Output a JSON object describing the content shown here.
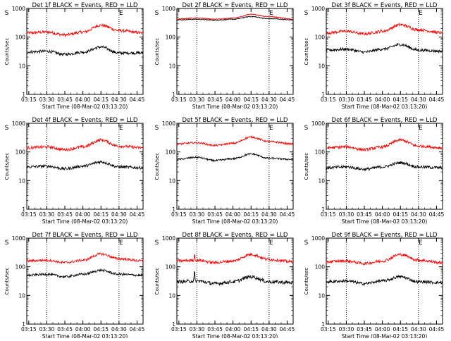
{
  "chart_data": [
    {
      "type": "line",
      "title": "Det 1f BLACK = Events, RED = LLD",
      "ylabel": "Counts/sec",
      "xlabel": "Start Time (08-Mar-02 03:13:20)",
      "yscale": "log",
      "ylim": [
        1,
        1000
      ],
      "x": [
        "03:15",
        "03:30",
        "03:45",
        "04:00",
        "04:15",
        "04:30",
        "04:45"
      ],
      "vlines": [
        "03:30",
        "04:30"
      ],
      "markers": [
        "S",
        "E"
      ],
      "series": [
        {
          "color": "#ff0000",
          "profile": [
            {
              "t": "03:13",
              "v": 140
            },
            {
              "t": "03:30",
              "v": 150
            },
            {
              "t": "03:45",
              "v": 120
            },
            {
              "t": "04:00",
              "v": 150
            },
            {
              "t": "04:15",
              "v": 260
            },
            {
              "t": "04:30",
              "v": 170
            },
            {
              "t": "04:50",
              "v": 140
            }
          ],
          "noise": 0.1,
          "spikes": []
        },
        {
          "color": "#000000",
          "profile": [
            {
              "t": "03:13",
              "v": 30
            },
            {
              "t": "03:30",
              "v": 32
            },
            {
              "t": "03:45",
              "v": 25
            },
            {
              "t": "04:00",
              "v": 30
            },
            {
              "t": "04:15",
              "v": 45
            },
            {
              "t": "04:30",
              "v": 28
            },
            {
              "t": "04:50",
              "v": 28
            }
          ],
          "noise": 0.1,
          "spikes": []
        }
      ]
    },
    {
      "type": "line",
      "title": "Det 2f BLACK = Events, RED = LLD",
      "ylabel": "Counts/sec",
      "xlabel": "Start Time (08-Mar-02 03:13:20)",
      "yscale": "log",
      "ylim": [
        1,
        1000
      ],
      "x": [
        "03:15",
        "03:30",
        "03:45",
        "04:00",
        "04:15",
        "04:30",
        "04:45"
      ],
      "vlines": [
        "03:30",
        "04:30"
      ],
      "markers": [
        "S",
        "E"
      ],
      "series": [
        {
          "color": "#ff0000",
          "profile": [
            {
              "t": "03:13",
              "v": 430
            },
            {
              "t": "03:30",
              "v": 460
            },
            {
              "t": "03:45",
              "v": 420
            },
            {
              "t": "04:00",
              "v": 460
            },
            {
              "t": "04:15",
              "v": 620
            },
            {
              "t": "04:30",
              "v": 520
            },
            {
              "t": "04:50",
              "v": 430
            }
          ],
          "noise": 0.03,
          "spikes": []
        },
        {
          "color": "#000000",
          "profile": [
            {
              "t": "03:13",
              "v": 400
            },
            {
              "t": "03:30",
              "v": 420
            },
            {
              "t": "03:45",
              "v": 390
            },
            {
              "t": "04:00",
              "v": 420
            },
            {
              "t": "04:15",
              "v": 520
            },
            {
              "t": "04:30",
              "v": 440
            },
            {
              "t": "04:50",
              "v": 400
            }
          ],
          "noise": 0.03,
          "spikes": []
        }
      ]
    },
    {
      "type": "line",
      "title": "Det 3f BLACK = Events, RED = LLD",
      "ylabel": "Counts/sec",
      "xlabel": "Start Time (08-Mar-02 03:13:20)",
      "yscale": "log",
      "ylim": [
        1,
        1000
      ],
      "x": [
        "03:15",
        "03:30",
        "03:45",
        "04:00",
        "04:15",
        "04:30",
        "04:45"
      ],
      "vlines": [
        "03:30",
        "04:30"
      ],
      "markers": [
        "S",
        "E"
      ],
      "series": [
        {
          "color": "#ff0000",
          "profile": [
            {
              "t": "03:13",
              "v": 140
            },
            {
              "t": "03:30",
              "v": 160
            },
            {
              "t": "03:45",
              "v": 130
            },
            {
              "t": "04:00",
              "v": 160
            },
            {
              "t": "04:15",
              "v": 270
            },
            {
              "t": "04:30",
              "v": 180
            },
            {
              "t": "04:50",
              "v": 140
            }
          ],
          "noise": 0.1,
          "spikes": []
        },
        {
          "color": "#000000",
          "profile": [
            {
              "t": "03:13",
              "v": 35
            },
            {
              "t": "03:30",
              "v": 38
            },
            {
              "t": "03:45",
              "v": 30
            },
            {
              "t": "04:00",
              "v": 38
            },
            {
              "t": "04:15",
              "v": 55
            },
            {
              "t": "04:30",
              "v": 35
            },
            {
              "t": "04:50",
              "v": 32
            }
          ],
          "noise": 0.1,
          "spikes": []
        }
      ]
    },
    {
      "type": "line",
      "title": "Det 4f BLACK = Events, RED = LLD",
      "ylabel": "Counts/sec",
      "xlabel": "Start Time (08-Mar-02 03:13:20)",
      "yscale": "log",
      "ylim": [
        1,
        1000
      ],
      "x": [
        "03:15",
        "03:30",
        "03:45",
        "04:00",
        "04:15",
        "04:30",
        "04:45"
      ],
      "vlines": [
        "03:30",
        "04:30"
      ],
      "markers": [
        "S",
        "E"
      ],
      "series": [
        {
          "color": "#ff0000",
          "profile": [
            {
              "t": "03:13",
              "v": 140
            },
            {
              "t": "03:30",
              "v": 150
            },
            {
              "t": "03:45",
              "v": 120
            },
            {
              "t": "04:00",
              "v": 150
            },
            {
              "t": "04:15",
              "v": 260
            },
            {
              "t": "04:30",
              "v": 160
            },
            {
              "t": "04:50",
              "v": 140
            }
          ],
          "noise": 0.1,
          "spikes": []
        },
        {
          "color": "#000000",
          "profile": [
            {
              "t": "03:13",
              "v": 30
            },
            {
              "t": "03:30",
              "v": 32
            },
            {
              "t": "03:45",
              "v": 26
            },
            {
              "t": "04:00",
              "v": 32
            },
            {
              "t": "04:15",
              "v": 45
            },
            {
              "t": "04:30",
              "v": 30
            },
            {
              "t": "04:50",
              "v": 28
            }
          ],
          "noise": 0.1,
          "spikes": []
        }
      ]
    },
    {
      "type": "line",
      "title": "Det 5f BLACK = Events, RED = LLD",
      "ylabel": "Counts/sec",
      "xlabel": "Start Time (08-Mar-02 03:13:20)",
      "yscale": "log",
      "ylim": [
        1,
        1000
      ],
      "x": [
        "03:15",
        "03:30",
        "03:45",
        "04:00",
        "04:15",
        "04:30",
        "04:45"
      ],
      "vlines": [
        "03:30",
        "04:30"
      ],
      "markers": [
        "S",
        "E"
      ],
      "series": [
        {
          "color": "#ff0000",
          "profile": [
            {
              "t": "03:13",
              "v": 190
            },
            {
              "t": "03:30",
              "v": 210
            },
            {
              "t": "03:45",
              "v": 170
            },
            {
              "t": "04:00",
              "v": 200
            },
            {
              "t": "04:15",
              "v": 330
            },
            {
              "t": "04:30",
              "v": 230
            },
            {
              "t": "04:50",
              "v": 190
            }
          ],
          "noise": 0.06,
          "spikes": []
        },
        {
          "color": "#000000",
          "profile": [
            {
              "t": "03:13",
              "v": 55
            },
            {
              "t": "03:30",
              "v": 65
            },
            {
              "t": "03:45",
              "v": 50
            },
            {
              "t": "04:00",
              "v": 58
            },
            {
              "t": "04:15",
              "v": 85
            },
            {
              "t": "04:30",
              "v": 60
            },
            {
              "t": "04:50",
              "v": 55
            }
          ],
          "noise": 0.06,
          "spikes": []
        }
      ]
    },
    {
      "type": "line",
      "title": "Det 6f BLACK = Events, RED = LLD",
      "ylabel": "Counts/sec",
      "xlabel": "Start Time (08-Mar-02 03:13:20)",
      "yscale": "log",
      "ylim": [
        1,
        1000
      ],
      "x": [
        "03:15",
        "03:30",
        "03:45",
        "04:00",
        "04:15",
        "04:30",
        "04:45"
      ],
      "vlines": [
        "03:30",
        "04:30"
      ],
      "markers": [
        "S",
        "E"
      ],
      "series": [
        {
          "color": "#ff0000",
          "profile": [
            {
              "t": "03:13",
              "v": 140
            },
            {
              "t": "03:30",
              "v": 150
            },
            {
              "t": "03:45",
              "v": 120
            },
            {
              "t": "04:00",
              "v": 150
            },
            {
              "t": "04:15",
              "v": 260
            },
            {
              "t": "04:30",
              "v": 160
            },
            {
              "t": "04:50",
              "v": 140
            }
          ],
          "noise": 0.1,
          "spikes": []
        },
        {
          "color": "#000000",
          "profile": [
            {
              "t": "03:13",
              "v": 28
            },
            {
              "t": "03:30",
              "v": 30
            },
            {
              "t": "03:45",
              "v": 25
            },
            {
              "t": "04:00",
              "v": 30
            },
            {
              "t": "04:15",
              "v": 42
            },
            {
              "t": "04:30",
              "v": 30
            },
            {
              "t": "04:50",
              "v": 28
            }
          ],
          "noise": 0.1,
          "spikes": []
        }
      ]
    },
    {
      "type": "line",
      "title": "Det 7f BLACK = Events, RED = LLD",
      "ylabel": "Counts/sec",
      "xlabel": "Start Time (08-Mar-02 03:13:20)",
      "yscale": "log",
      "ylim": [
        1,
        1000
      ],
      "x": [
        "03:15",
        "03:30",
        "03:45",
        "04:00",
        "04:15",
        "04:30",
        "04:45"
      ],
      "vlines": [
        "03:30",
        "04:30"
      ],
      "markers": [
        "S",
        "E"
      ],
      "series": [
        {
          "color": "#ff0000",
          "profile": [
            {
              "t": "03:13",
              "v": 160
            },
            {
              "t": "03:30",
              "v": 170
            },
            {
              "t": "03:45",
              "v": 140
            },
            {
              "t": "04:00",
              "v": 170
            },
            {
              "t": "04:15",
              "v": 280
            },
            {
              "t": "04:30",
              "v": 190
            },
            {
              "t": "04:50",
              "v": 160
            }
          ],
          "noise": 0.08,
          "spikes": []
        },
        {
          "color": "#000000",
          "profile": [
            {
              "t": "03:13",
              "v": 50
            },
            {
              "t": "03:30",
              "v": 55
            },
            {
              "t": "03:45",
              "v": 45
            },
            {
              "t": "04:00",
              "v": 55
            },
            {
              "t": "04:15",
              "v": 75
            },
            {
              "t": "04:30",
              "v": 55
            },
            {
              "t": "04:50",
              "v": 50
            }
          ],
          "noise": 0.08,
          "spikes": []
        }
      ]
    },
    {
      "type": "line",
      "title": "Det 8f BLACK = Events, RED = LLD",
      "ylabel": "Counts/sec",
      "xlabel": "Start Time (08-Mar-02 03:13:20)",
      "yscale": "log",
      "ylim": [
        1,
        1000
      ],
      "x": [
        "03:15",
        "03:30",
        "03:45",
        "04:00",
        "04:15",
        "04:30",
        "04:45"
      ],
      "vlines": [
        "03:30",
        "04:30"
      ],
      "markers": [
        "S",
        "E"
      ],
      "series": [
        {
          "color": "#ff0000",
          "profile": [
            {
              "t": "03:13",
              "v": 160
            },
            {
              "t": "03:30",
              "v": 170
            },
            {
              "t": "03:45",
              "v": 140
            },
            {
              "t": "04:00",
              "v": 160
            },
            {
              "t": "04:15",
              "v": 270
            },
            {
              "t": "04:30",
              "v": 180
            },
            {
              "t": "04:50",
              "v": 150
            }
          ],
          "noise": 0.1,
          "spikes": [
            {
              "t": "03:28",
              "v": 300
            }
          ]
        },
        {
          "color": "#000000",
          "profile": [
            {
              "t": "03:13",
              "v": 30
            },
            {
              "t": "03:30",
              "v": 32
            },
            {
              "t": "03:45",
              "v": 26
            },
            {
              "t": "04:00",
              "v": 30
            },
            {
              "t": "04:15",
              "v": 45
            },
            {
              "t": "04:30",
              "v": 30
            },
            {
              "t": "04:50",
              "v": 28
            }
          ],
          "noise": 0.12,
          "spikes": [
            {
              "t": "03:28",
              "v": 80
            }
          ]
        }
      ]
    },
    {
      "type": "line",
      "title": "Det 9f BLACK = Events, RED = LLD",
      "ylabel": "Counts/sec",
      "xlabel": "Start Time (08-Mar-02 03:13:20)",
      "yscale": "log",
      "ylim": [
        1,
        1000
      ],
      "x": [
        "03:15",
        "03:30",
        "03:45",
        "04:00",
        "04:15",
        "04:30",
        "04:45"
      ],
      "vlines": [
        "03:30",
        "04:30"
      ],
      "markers": [
        "S",
        "E"
      ],
      "series": [
        {
          "color": "#ff0000",
          "profile": [
            {
              "t": "03:13",
              "v": 150
            },
            {
              "t": "03:30",
              "v": 160
            },
            {
              "t": "03:45",
              "v": 130
            },
            {
              "t": "04:00",
              "v": 160
            },
            {
              "t": "04:15",
              "v": 270
            },
            {
              "t": "04:30",
              "v": 170
            },
            {
              "t": "04:50",
              "v": 140
            }
          ],
          "noise": 0.1,
          "spikes": []
        },
        {
          "color": "#000000",
          "profile": [
            {
              "t": "03:13",
              "v": 30
            },
            {
              "t": "03:30",
              "v": 32
            },
            {
              "t": "03:45",
              "v": 26
            },
            {
              "t": "04:00",
              "v": 32
            },
            {
              "t": "04:15",
              "v": 45
            },
            {
              "t": "04:30",
              "v": 30
            },
            {
              "t": "04:50",
              "v": 28
            }
          ],
          "noise": 0.1,
          "spikes": []
        }
      ]
    }
  ]
}
